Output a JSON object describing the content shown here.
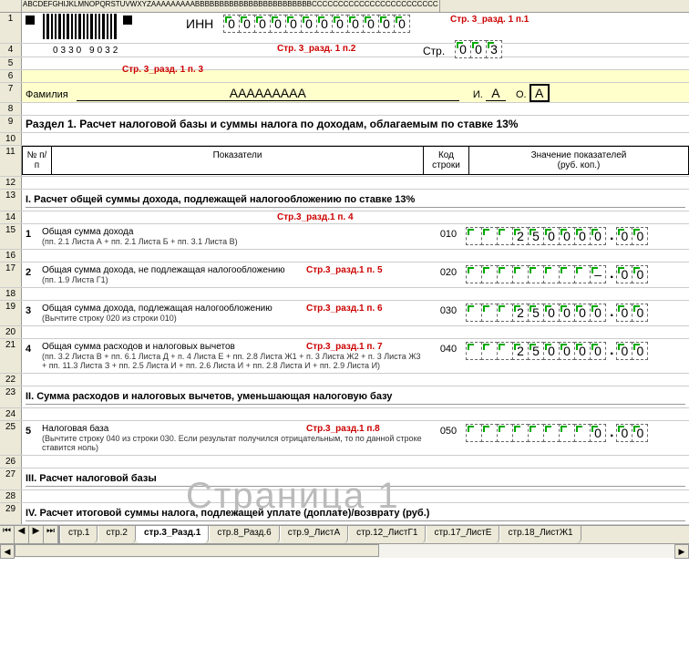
{
  "columns": "ABCDEFGHIJKLMNOPQRSTUVWXYZAAAAAAAAABBBBBBBBBBBBBBBBBBBBBBBBCCCCCCCCCCCCCCCCCCCCCCCC",
  "barcode_number": "0330 9032",
  "inn": {
    "label": "ИНН",
    "value": "000000000000"
  },
  "page": {
    "label": "Стр.",
    "value": "003"
  },
  "red_labels": {
    "p1": "Стр. 3_разд. 1 п.1",
    "p2": "Стр. 3_разд. 1 п.2",
    "p3": "Стр. 3_разд. 1 п. 3",
    "p4": "Стр.3_разд.1 п. 4",
    "p5": "Стр.3_разд.1 п. 5",
    "p6": "Стр.3_разд.1 п. 6",
    "p7": "Стр.3_разд.1 п. 7",
    "p8": "Стр.3_разд.1 п.8"
  },
  "surname": {
    "label": "Фамилия",
    "value": "ААААААААА",
    "i_label": "И.",
    "i_val": "А",
    "o_label": "О.",
    "o_val": "А"
  },
  "section_title": "Раздел 1. Расчет налоговой базы и суммы налога по доходам, облагаемым по ставке 13%",
  "table_headers": {
    "num": "№ п/п",
    "ind": "Показатели",
    "code": "Код строки",
    "val": "Значение показателей",
    "val_sub": "(руб. коп.)"
  },
  "sub1": "I. Расчет общей суммы дохода, подлежащей налогообложению по ставке 13%",
  "sub2": "II. Сумма расходов и налоговых вычетов, уменьшающая налоговую базу",
  "sub3": "III. Расчет налоговой базы",
  "sub4": "IV. Расчет итоговой суммы налога, подлежащей уплате (доплате)/возврату (руб.)",
  "items": [
    {
      "n": "1",
      "text": "Общая сумма дохода",
      "sub": "(пп. 2.1 Листа А + пп. 2.1 Листа Б + пп. 3.1 Листа В)",
      "code": "010",
      "int": "250000",
      "kop": "00"
    },
    {
      "n": "2",
      "text": "Общая сумма дохода, не подлежащая налогообложению",
      "sub": "(пп. 1.9 Листа Г1)",
      "code": "020",
      "int": "–",
      "kop": "00"
    },
    {
      "n": "3",
      "text": "Общая сумма дохода, подлежащая налогообложению",
      "sub": "(Вычтите строку 020 из строки 010)",
      "code": "030",
      "int": "250000",
      "kop": "00"
    },
    {
      "n": "4",
      "text": "Общая сумма расходов и налоговых вычетов",
      "sub": "(пп. 3.2 Листа В + пп. 6.1 Листа Д + п. 4 Листа Е + пп. 2.8 Листа Ж1 + п. 3 Листа Ж2 + п. 3 Листа Ж3 + пп. 11.3 Листа З + пп. 2.5 Листа И + пп. 2.6 Листа И + пп. 2.8 Листа И + пп. 2.9 Листа И)",
      "code": "040",
      "int": "250000",
      "kop": "00"
    },
    {
      "n": "5",
      "text": "Налоговая база",
      "sub": "(Вычтите строку 040 из строки 030. Если результат получился отрицательным, то по данной строке ставится ноль)",
      "code": "050",
      "int": "0",
      "kop": "00"
    }
  ],
  "watermark": "Страница 1",
  "tabs": [
    "стр.1",
    "стр.2",
    "стр.3_Разд.1",
    "стр.8_Разд.6",
    "стр.9_ЛистА",
    "стр.12_ЛистГ1",
    "стр.17_ЛистЕ",
    "стр.18_ЛистЖ1"
  ],
  "active_tab": 2
}
